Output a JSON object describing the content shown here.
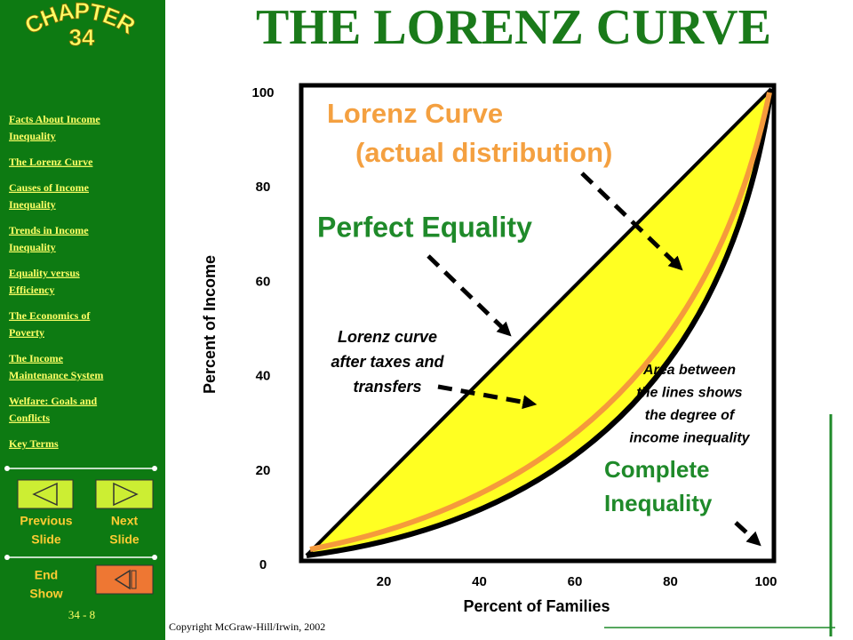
{
  "sidebar": {
    "chapter": "CHAPTER",
    "chapter_number": "34",
    "links": [
      [
        "Facts About Income",
        "Inequality"
      ],
      [
        "The Lorenz Curve"
      ],
      [
        "Causes of Income",
        "Inequality"
      ],
      [
        "Trends in Income",
        "Inequality"
      ],
      [
        "Equality versus",
        "Efficiency"
      ],
      [
        "The Economics of",
        "Poverty"
      ],
      [
        "The Income",
        "Maintenance System"
      ],
      [
        "Welfare: Goals and",
        "Conflicts"
      ],
      [
        "Key Terms"
      ]
    ],
    "previous": [
      "Previous",
      "Slide"
    ],
    "next": [
      "Next",
      "Slide"
    ],
    "end": [
      "End",
      "Show"
    ],
    "page_number": "34 - 8"
  },
  "title": "THE LORENZ CURVE",
  "diagram": {
    "y_label": "Percent of Income",
    "x_label": "Percent of Families",
    "y_ticks": [
      "0",
      "20",
      "40",
      "60",
      "80",
      "100"
    ],
    "x_ticks": [
      "20",
      "40",
      "60",
      "80",
      "100"
    ],
    "lorenz_curve": [
      "Lorenz Curve",
      "(actual distribution)"
    ],
    "perfect_equality": "Perfect Equality",
    "after_taxes": [
      "Lorenz curve",
      "after taxes and",
      "transfers"
    ],
    "area_note": [
      "Area between",
      "the lines shows",
      "the degree of",
      "income inequality"
    ],
    "complete_inequality": [
      "Complete",
      "Inequality"
    ]
  },
  "copyright": "Copyright McGraw-Hill/Irwin,  2002"
}
